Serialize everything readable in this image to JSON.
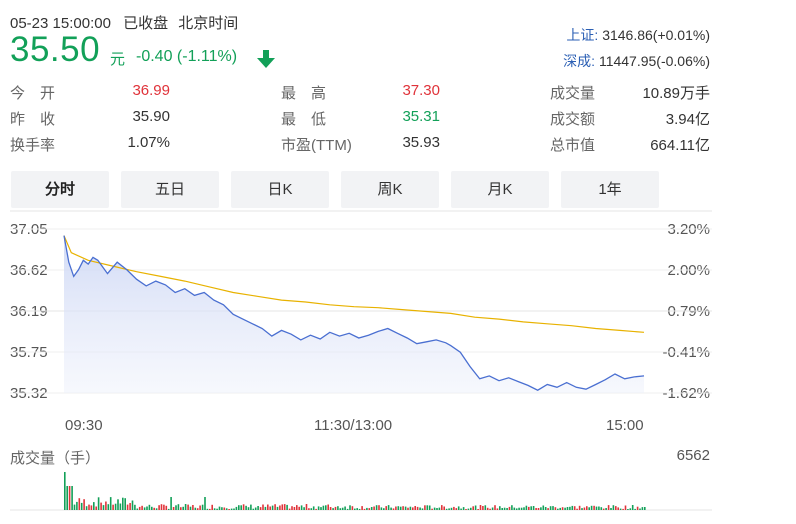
{
  "header": {
    "datetime": "05-23 15:00:00",
    "status": "已收盘",
    "timezone": "北京时间",
    "price": "35.50",
    "currency": "元",
    "change": "-0.40 (-1.11%)"
  },
  "indices": [
    {
      "name": "上证:",
      "value": "3146.86(+0.01%)"
    },
    {
      "name": "深成:",
      "value": "11447.95(-0.06%)"
    }
  ],
  "stats": {
    "open_label": "今　开",
    "open_value": "36.99",
    "prev_close_label": "昨　收",
    "prev_close_value": "35.90",
    "turnover_label": "换手率",
    "turnover_value": "1.07%",
    "high_label": "最　高",
    "high_value": "37.30",
    "low_label": "最　低",
    "low_value": "35.31",
    "pe_label": "市盈(TTM)",
    "pe_value": "35.93",
    "volume_label": "成交量",
    "volume_value": "10.89万手",
    "amount_label": "成交额",
    "amount_value": "3.94亿",
    "mktcap_label": "总市值",
    "mktcap_value": "664.11亿"
  },
  "tabs": [
    {
      "label": "分时",
      "active": true
    },
    {
      "label": "五日",
      "active": false
    },
    {
      "label": "日K",
      "active": false
    },
    {
      "label": "周K",
      "active": false
    },
    {
      "label": "月K",
      "active": false
    },
    {
      "label": "1年",
      "active": false
    }
  ],
  "colors": {
    "up": "#e0333a",
    "down": "#12a058",
    "price_line": "#4a6fd1",
    "avg_line": "#e8b200",
    "index_name": "#2b5fb4"
  },
  "volume": {
    "label": "成交量（手）",
    "max": "6562"
  },
  "chart_data": {
    "type": "line",
    "x_ticks": [
      "09:30",
      "11:30/13:00",
      "15:00"
    ],
    "y_ticks_left": [
      "37.05",
      "36.62",
      "36.19",
      "35.75",
      "35.32"
    ],
    "y_ticks_right": [
      "3.20%",
      "2.00%",
      "0.79%",
      "-0.41%",
      "-1.62%"
    ],
    "ylim": [
      35.32,
      37.05
    ],
    "x_range_minutes": [
      0,
      240
    ],
    "series": [
      {
        "values": [
          [
            0,
            36.98
          ],
          [
            2,
            36.7
          ],
          [
            4,
            36.55
          ],
          [
            6,
            36.62
          ],
          [
            8,
            36.72
          ],
          [
            10,
            36.68
          ],
          [
            12,
            36.75
          ],
          [
            14,
            36.72
          ],
          [
            18,
            36.58
          ],
          [
            22,
            36.7
          ],
          [
            26,
            36.62
          ],
          [
            30,
            36.52
          ],
          [
            34,
            36.45
          ],
          [
            38,
            36.5
          ],
          [
            42,
            36.46
          ],
          [
            46,
            36.38
          ],
          [
            50,
            36.42
          ],
          [
            54,
            36.35
          ],
          [
            58,
            36.38
          ],
          [
            62,
            36.3
          ],
          [
            66,
            36.25
          ],
          [
            70,
            36.15
          ],
          [
            74,
            36.1
          ],
          [
            78,
            36.05
          ],
          [
            82,
            36.0
          ],
          [
            86,
            35.92
          ],
          [
            90,
            35.98
          ],
          [
            94,
            35.94
          ],
          [
            98,
            35.88
          ],
          [
            102,
            35.93
          ],
          [
            106,
            35.89
          ],
          [
            110,
            35.96
          ],
          [
            114,
            35.92
          ],
          [
            118,
            35.95
          ],
          [
            122,
            35.9
          ],
          [
            126,
            35.93
          ],
          [
            130,
            35.97
          ],
          [
            134,
            36.0
          ],
          [
            138,
            35.95
          ],
          [
            142,
            35.9
          ],
          [
            146,
            35.84
          ],
          [
            150,
            35.86
          ],
          [
            154,
            35.88
          ],
          [
            158,
            35.85
          ],
          [
            160,
            35.82
          ],
          [
            164,
            35.75
          ],
          [
            168,
            35.6
          ],
          [
            172,
            35.47
          ],
          [
            176,
            35.5
          ],
          [
            180,
            35.45
          ],
          [
            184,
            35.48
          ],
          [
            188,
            35.44
          ],
          [
            192,
            35.4
          ],
          [
            196,
            35.35
          ],
          [
            200,
            35.41
          ],
          [
            204,
            35.38
          ],
          [
            208,
            35.43
          ],
          [
            212,
            35.38
          ],
          [
            216,
            35.36
          ],
          [
            220,
            35.41
          ],
          [
            224,
            35.46
          ],
          [
            228,
            35.52
          ],
          [
            232,
            35.47
          ],
          [
            236,
            35.49
          ],
          [
            240,
            35.5
          ]
        ]
      },
      {
        "values": [
          [
            0,
            36.98
          ],
          [
            3,
            36.8
          ],
          [
            10,
            36.72
          ],
          [
            20,
            36.66
          ],
          [
            30,
            36.6
          ],
          [
            40,
            36.55
          ],
          [
            50,
            36.5
          ],
          [
            60,
            36.44
          ],
          [
            70,
            36.38
          ],
          [
            80,
            36.34
          ],
          [
            90,
            36.3
          ],
          [
            100,
            36.28
          ],
          [
            110,
            36.25
          ],
          [
            120,
            36.23
          ],
          [
            130,
            36.22
          ],
          [
            140,
            36.2
          ],
          [
            150,
            36.18
          ],
          [
            160,
            36.16
          ],
          [
            170,
            36.12
          ],
          [
            180,
            36.1
          ],
          [
            190,
            36.07
          ],
          [
            200,
            36.05
          ],
          [
            210,
            36.03
          ],
          [
            220,
            36.0
          ],
          [
            230,
            35.98
          ],
          [
            240,
            35.96
          ]
        ]
      }
    ]
  }
}
